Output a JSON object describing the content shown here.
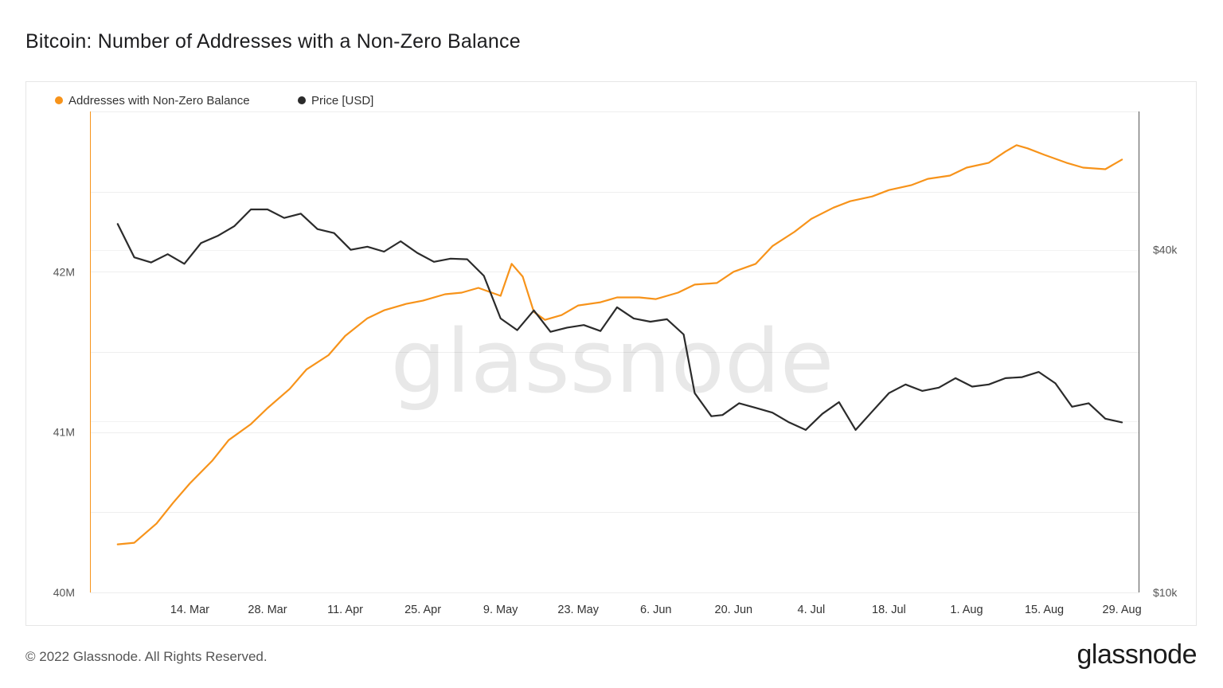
{
  "page": {
    "title": "Bitcoin: Number of Addresses with a Non-Zero Balance",
    "copyright": "© 2022 Glassnode. All Rights Reserved.",
    "brand": "glassnode",
    "watermark": "glassnode"
  },
  "colors": {
    "addresses": "#f7931a",
    "price": "#2b2b2b",
    "grid": "#eeeeee",
    "frame": "#e6e6e6"
  },
  "chart_data": {
    "type": "line",
    "title": "Bitcoin: Number of Addresses with a Non-Zero Balance",
    "legend_position": "top-left",
    "grid": true,
    "x_ticks": [
      "14. Mar",
      "28. Mar",
      "11. Apr",
      "25. Apr",
      "9. May",
      "23. May",
      "6. Jun",
      "20. Jun",
      "4. Jul",
      "18. Jul",
      "1. Aug",
      "15. Aug",
      "29. Aug"
    ],
    "y_left": {
      "ticks": [
        "40M",
        "41M",
        "42M"
      ],
      "range": [
        40000000,
        43000000
      ]
    },
    "y_right": {
      "ticks": [
        "$10k",
        "$40k"
      ],
      "scale": "log",
      "range": [
        10000,
        70000
      ]
    },
    "series": [
      {
        "name": "Addresses with Non-Zero Balance",
        "axis": "left",
        "x": [
          "2022-03-01",
          "2022-03-04",
          "2022-03-08",
          "2022-03-11",
          "2022-03-14",
          "2022-03-18",
          "2022-03-21",
          "2022-03-25",
          "2022-03-28",
          "2022-04-01",
          "2022-04-04",
          "2022-04-08",
          "2022-04-11",
          "2022-04-15",
          "2022-04-18",
          "2022-04-22",
          "2022-04-25",
          "2022-04-29",
          "2022-05-02",
          "2022-05-05",
          "2022-05-09",
          "2022-05-11",
          "2022-05-13",
          "2022-05-15",
          "2022-05-17",
          "2022-05-20",
          "2022-05-23",
          "2022-05-27",
          "2022-05-30",
          "2022-06-03",
          "2022-06-06",
          "2022-06-10",
          "2022-06-13",
          "2022-06-17",
          "2022-06-20",
          "2022-06-24",
          "2022-06-27",
          "2022-07-01",
          "2022-07-04",
          "2022-07-08",
          "2022-07-11",
          "2022-07-15",
          "2022-07-18",
          "2022-07-22",
          "2022-07-25",
          "2022-07-29",
          "2022-08-01",
          "2022-08-05",
          "2022-08-08",
          "2022-08-10",
          "2022-08-12",
          "2022-08-15",
          "2022-08-19",
          "2022-08-22",
          "2022-08-26",
          "2022-08-29"
        ],
        "values": [
          40300000,
          40310000,
          40430000,
          40560000,
          40680000,
          40820000,
          40950000,
          41050000,
          41150000,
          41270000,
          41390000,
          41480000,
          41600000,
          41710000,
          41760000,
          41800000,
          41820000,
          41860000,
          41870000,
          41900000,
          41850000,
          42050000,
          41970000,
          41750000,
          41700000,
          41730000,
          41790000,
          41810000,
          41840000,
          41840000,
          41830000,
          41870000,
          41920000,
          41930000,
          42000000,
          42050000,
          42160000,
          42250000,
          42330000,
          42400000,
          42440000,
          42470000,
          42510000,
          42540000,
          42580000,
          42600000,
          42650000,
          42680000,
          42750000,
          42790000,
          42770000,
          42730000,
          42680000,
          42650000,
          42640000,
          42700000
        ]
      },
      {
        "name": "Price [USD]",
        "axis": "right",
        "x": [
          "2022-03-01",
          "2022-03-04",
          "2022-03-07",
          "2022-03-10",
          "2022-03-13",
          "2022-03-16",
          "2022-03-19",
          "2022-03-22",
          "2022-03-25",
          "2022-03-28",
          "2022-03-31",
          "2022-04-03",
          "2022-04-06",
          "2022-04-09",
          "2022-04-12",
          "2022-04-15",
          "2022-04-18",
          "2022-04-21",
          "2022-04-24",
          "2022-04-27",
          "2022-04-30",
          "2022-05-03",
          "2022-05-06",
          "2022-05-09",
          "2022-05-12",
          "2022-05-15",
          "2022-05-18",
          "2022-05-21",
          "2022-05-24",
          "2022-05-27",
          "2022-05-30",
          "2022-06-02",
          "2022-06-05",
          "2022-06-08",
          "2022-06-11",
          "2022-06-13",
          "2022-06-16",
          "2022-06-18",
          "2022-06-21",
          "2022-06-24",
          "2022-06-27",
          "2022-06-30",
          "2022-07-03",
          "2022-07-06",
          "2022-07-09",
          "2022-07-12",
          "2022-07-15",
          "2022-07-18",
          "2022-07-21",
          "2022-07-24",
          "2022-07-27",
          "2022-07-30",
          "2022-08-02",
          "2022-08-05",
          "2022-08-08",
          "2022-08-11",
          "2022-08-14",
          "2022-08-17",
          "2022-08-20",
          "2022-08-23",
          "2022-08-26",
          "2022-08-29"
        ],
        "values": [
          44400,
          38800,
          38000,
          39300,
          37800,
          41100,
          42300,
          44000,
          47100,
          47100,
          45500,
          46300,
          43500,
          42800,
          40000,
          40500,
          39700,
          41400,
          39500,
          38100,
          38600,
          38500,
          36000,
          30300,
          28900,
          31300,
          28700,
          29200,
          29500,
          28800,
          31700,
          30300,
          29900,
          30200,
          28400,
          22400,
          20400,
          20500,
          21500,
          21100,
          20700,
          19900,
          19300,
          20600,
          21600,
          19300,
          20800,
          22400,
          23200,
          22600,
          22900,
          23800,
          23000,
          23200,
          23800,
          23900,
          24400,
          23300,
          21200,
          21500,
          20200,
          19900
        ]
      }
    ]
  }
}
